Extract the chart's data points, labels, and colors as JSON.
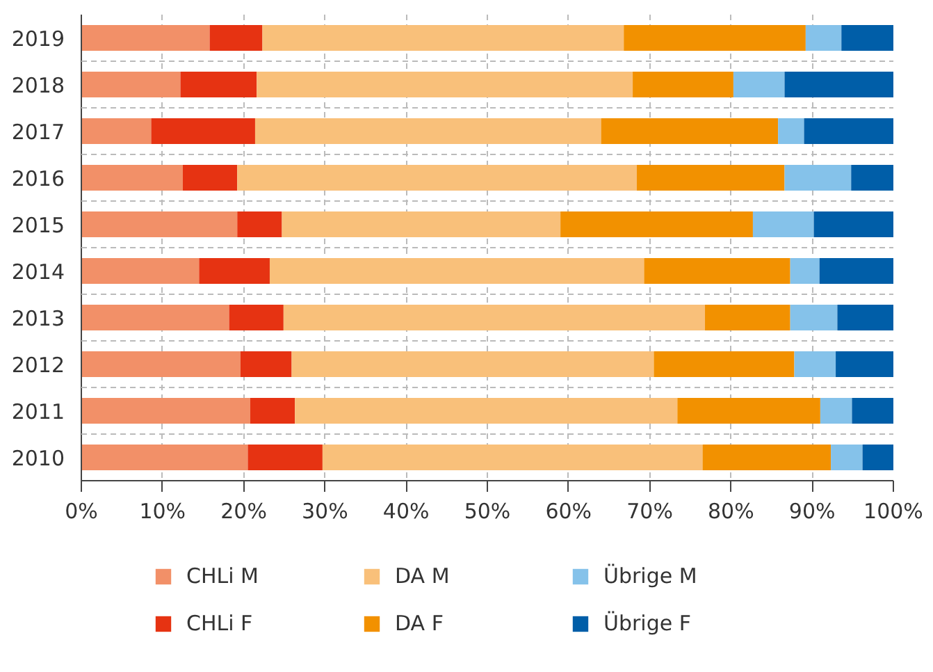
{
  "chart_data": {
    "type": "bar",
    "orientation": "horizontal",
    "stacked": true,
    "categories": [
      "2019",
      "2018",
      "2017",
      "2016",
      "2015",
      "2014",
      "2013",
      "2012",
      "2011",
      "2010"
    ],
    "series": [
      {
        "name": "CHLi M",
        "color": "#f29068",
        "values": [
          15.8,
          12.2,
          8.6,
          12.5,
          19.2,
          14.5,
          18.2,
          19.6,
          20.8,
          20.5
        ]
      },
      {
        "name": "CHLi F",
        "color": "#e63312",
        "values": [
          6.5,
          9.4,
          12.8,
          6.7,
          5.5,
          8.7,
          6.7,
          6.3,
          5.5,
          9.2
        ]
      },
      {
        "name": "DA M",
        "color": "#f9c07a",
        "values": [
          44.5,
          46.3,
          42.6,
          49.2,
          34.3,
          46.1,
          51.9,
          44.6,
          47.1,
          46.8
        ]
      },
      {
        "name": "DA F",
        "color": "#f29100",
        "values": [
          22.4,
          12.4,
          21.8,
          18.2,
          23.7,
          18.0,
          10.5,
          17.3,
          17.6,
          15.8
        ]
      },
      {
        "name": "Übrige M",
        "color": "#85c2ea",
        "values": [
          4.4,
          6.3,
          3.2,
          8.2,
          7.5,
          3.6,
          5.8,
          5.1,
          3.9,
          3.9
        ]
      },
      {
        "name": "Übrige F",
        "color": "#005ea8",
        "values": [
          6.4,
          13.4,
          11.0,
          5.2,
          9.8,
          9.1,
          6.9,
          7.1,
          5.1,
          3.8
        ]
      }
    ],
    "xlim": [
      0,
      100
    ],
    "xticks": [
      {
        "value": 0,
        "label": "0%"
      },
      {
        "value": 10,
        "label": "10%"
      },
      {
        "value": 20,
        "label": "20%"
      },
      {
        "value": 30,
        "label": "30%"
      },
      {
        "value": 40,
        "label": "40%"
      },
      {
        "value": 50,
        "label": "50%"
      },
      {
        "value": 60,
        "label": "60%"
      },
      {
        "value": 70,
        "label": "70%"
      },
      {
        "value": 80,
        "label": "80%"
      },
      {
        "value": 90,
        "label": "90%"
      },
      {
        "value": 100,
        "label": "100%"
      }
    ],
    "grid": true,
    "legend": "bottom"
  }
}
